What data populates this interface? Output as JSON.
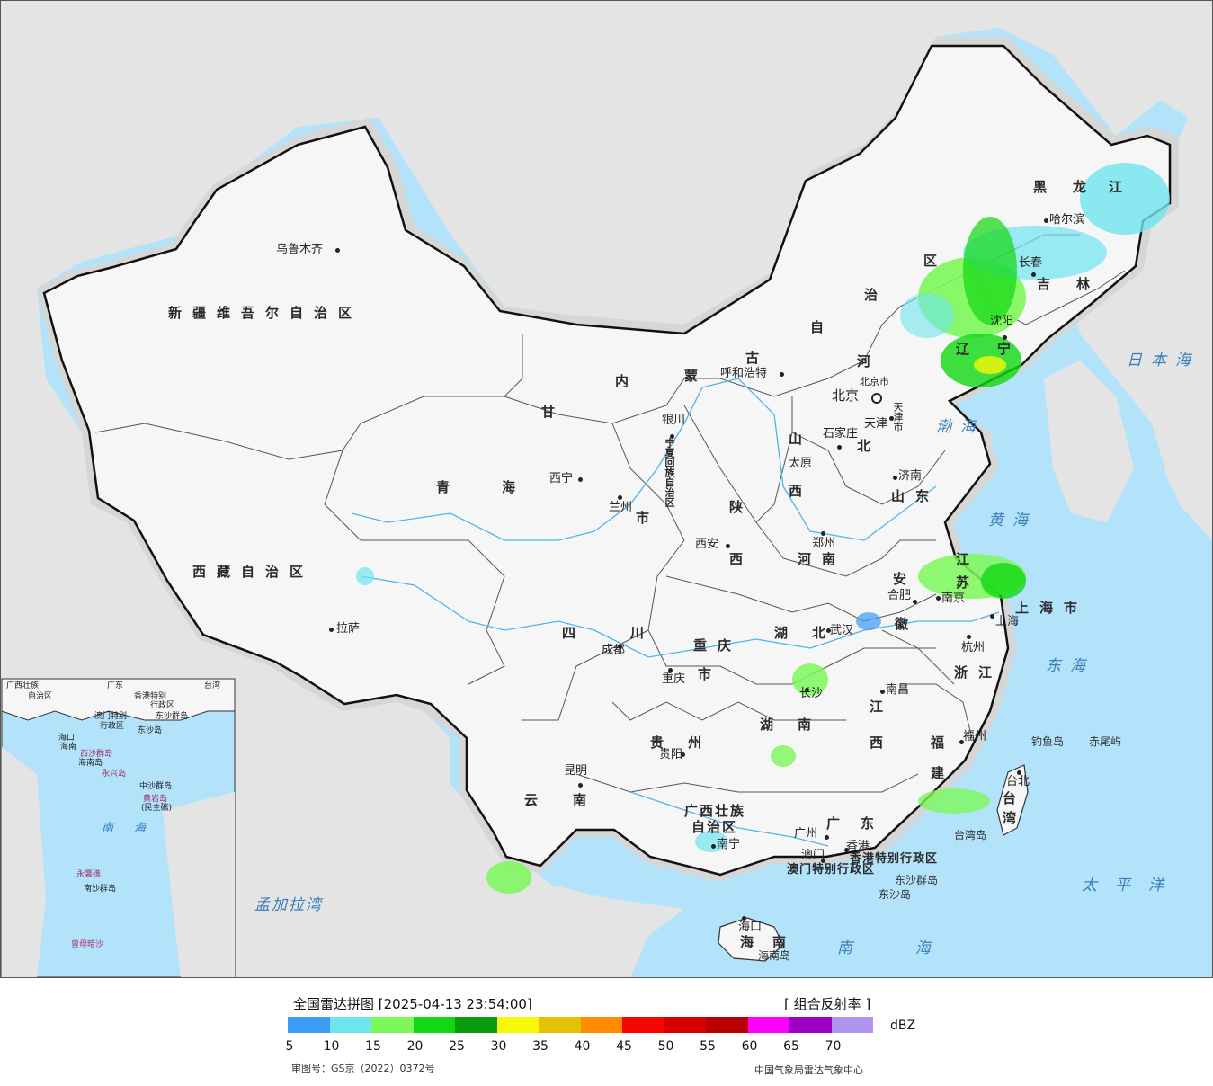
{
  "map": {
    "provinces": [
      {
        "name": "新疆维吾尔自治区",
        "cls": "prov"
      },
      {
        "name": "西藏自治区",
        "cls": "prov"
      },
      {
        "name": "青",
        "cls": "prov"
      },
      {
        "name": "海",
        "cls": "prov"
      },
      {
        "name": "甘",
        "cls": "prov"
      },
      {
        "name": "内",
        "cls": "prov"
      },
      {
        "name": "蒙",
        "cls": "prov"
      },
      {
        "name": "古",
        "cls": "prov"
      },
      {
        "name": "自",
        "cls": "prov"
      },
      {
        "name": "治",
        "cls": "prov"
      },
      {
        "name": "区",
        "cls": "prov"
      },
      {
        "name": "黑",
        "cls": "prov"
      },
      {
        "name": "龙",
        "cls": "prov"
      },
      {
        "name": "江",
        "cls": "prov"
      },
      {
        "name": "吉",
        "cls": "prov"
      },
      {
        "name": "林",
        "cls": "prov"
      },
      {
        "name": "辽",
        "cls": "prov"
      },
      {
        "name": "宁",
        "cls": "prov"
      },
      {
        "name": "河",
        "cls": "prov"
      },
      {
        "name": "北",
        "cls": "prov"
      },
      {
        "name": "山",
        "cls": "prov"
      },
      {
        "name": "西",
        "cls": "prov"
      },
      {
        "name": "山东",
        "cls": "prov"
      },
      {
        "name": "陕",
        "cls": "prov"
      },
      {
        "name": "西",
        "cls": "prov"
      },
      {
        "name": "河南",
        "cls": "prov"
      },
      {
        "name": "江",
        "cls": "prov"
      },
      {
        "name": "苏",
        "cls": "prov"
      },
      {
        "name": "安",
        "cls": "prov"
      },
      {
        "name": "徽",
        "cls": "prov"
      },
      {
        "name": "上海市",
        "cls": "prov"
      },
      {
        "name": "湖",
        "cls": "prov"
      },
      {
        "name": "北",
        "cls": "prov"
      },
      {
        "name": "四",
        "cls": "prov"
      },
      {
        "name": "川",
        "cls": "prov"
      },
      {
        "name": "重庆",
        "cls": "prov"
      },
      {
        "name": "市",
        "cls": "prov"
      },
      {
        "name": "浙江",
        "cls": "prov"
      },
      {
        "name": "江",
        "cls": "prov"
      },
      {
        "name": "西",
        "cls": "prov"
      },
      {
        "name": "湖",
        "cls": "prov"
      },
      {
        "name": "南",
        "cls": "prov"
      },
      {
        "name": "贵",
        "cls": "prov"
      },
      {
        "name": "州",
        "cls": "prov"
      },
      {
        "name": "福",
        "cls": "prov"
      },
      {
        "name": "建",
        "cls": "prov"
      },
      {
        "name": "云",
        "cls": "prov"
      },
      {
        "name": "南",
        "cls": "prov"
      },
      {
        "name": "广西壮族",
        "cls": "prov"
      },
      {
        "name": "自治区",
        "cls": "prov"
      },
      {
        "name": "广",
        "cls": "prov"
      },
      {
        "name": "东",
        "cls": "prov"
      },
      {
        "name": "台",
        "cls": "prov"
      },
      {
        "name": "湾",
        "cls": "prov"
      },
      {
        "name": "海",
        "cls": "prov"
      },
      {
        "name": "南",
        "cls": "prov"
      },
      {
        "name": "宁夏回族自治区",
        "cls": "prov small"
      },
      {
        "name": "香港特别行政区",
        "cls": "prov small"
      },
      {
        "name": "澳门特别行政区",
        "cls": "prov small"
      },
      {
        "name": "市",
        "cls": "prov"
      }
    ],
    "cities": [
      "乌鲁木齐",
      "拉萨",
      "西宁",
      "兰州",
      "银川",
      "呼和浩特",
      "北京",
      "北京市",
      "天津",
      "天津市",
      "石家庄",
      "太原",
      "济南",
      "郑州",
      "西安",
      "成都",
      "重庆",
      "武汉",
      "合肥",
      "南京",
      "上海",
      "杭州",
      "南昌",
      "长沙",
      "福州",
      "台北",
      "贵阳",
      "昆明",
      "南宁",
      "广州",
      "香港",
      "澳门",
      "海口",
      "哈尔滨",
      "长春",
      "沈阳"
    ],
    "seas": [
      "日本海",
      "渤海",
      "黄海",
      "东海",
      "南海",
      "太平洋",
      "孟加拉湾",
      "南海"
    ],
    "islands": [
      "钓鱼岛",
      "赤尾屿",
      "台湾岛",
      "东沙群岛",
      "东沙岛",
      "海南岛"
    ],
    "inset": {
      "labels": [
        "广西壮族",
        "广东",
        "台湾",
        "自治区",
        "香港特别",
        "行政区",
        "澳门特别",
        "东沙群岛",
        "行政区",
        "东沙岛",
        "海口",
        "海南",
        "西沙群岛",
        "海南岛",
        "永兴岛",
        "中沙群岛",
        "黄岩岛",
        "(民主礁)",
        "南",
        "海",
        "永暑礁",
        "南沙群岛",
        "曾母暗沙"
      ]
    }
  },
  "legend": {
    "title": "全国雷达拼图 [2025-04-13 23:54:00]",
    "product": "[ 组合反射率 ]",
    "unit": "dBZ",
    "colors": [
      "#3d9bf3",
      "#6fe6ef",
      "#7cf85a",
      "#11d811",
      "#0b9a0b",
      "#f7f707",
      "#e5c200",
      "#ff8b00",
      "#f80500",
      "#d90000",
      "#b90000",
      "#ff00ff",
      "#9a00c0",
      "#af94f0"
    ],
    "ticks": [
      "5",
      "10",
      "15",
      "20",
      "25",
      "30",
      "35",
      "40",
      "45",
      "50",
      "55",
      "60",
      "65",
      "70"
    ],
    "review_no": "审图号：GS京（2022）0372号",
    "source": "中国气象局雷达气象中心"
  }
}
